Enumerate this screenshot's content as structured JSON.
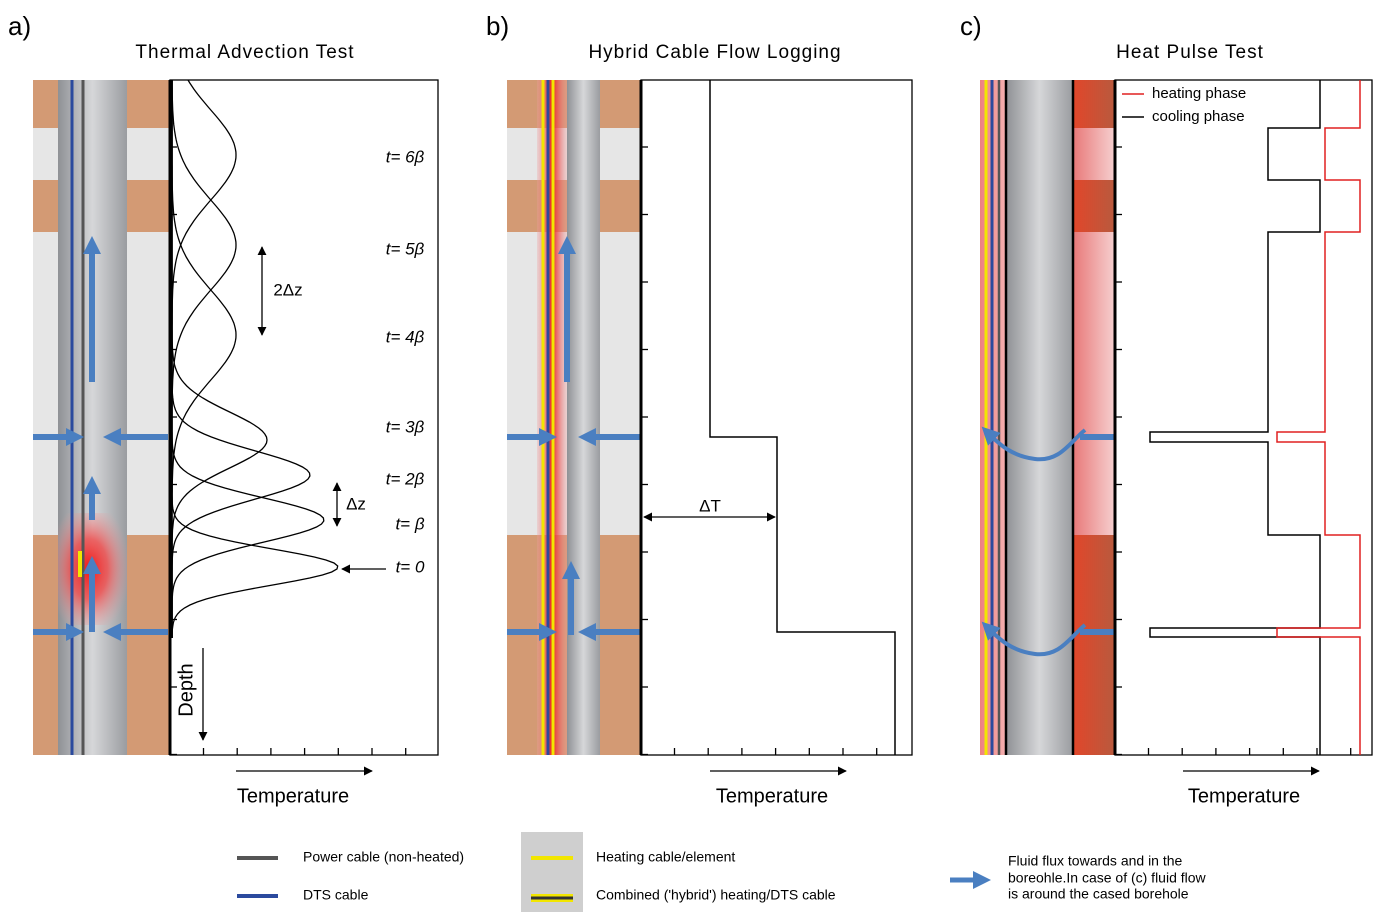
{
  "panels": [
    {
      "label": "a)",
      "title": "Thermal Advection Test",
      "x_axis_label": "Temperature",
      "time_labels": [
        "t= 6β",
        "t= 5β",
        "t= 4β",
        "t= 3β",
        "t= 2β",
        "t= β",
        "t= 0"
      ],
      "annotations": [
        "2Δz",
        "Δz"
      ],
      "depth_label": "Depth"
    },
    {
      "label": "b)",
      "title": "Hybrid Cable Flow Logging",
      "x_axis_label": "Temperature",
      "annotations": [
        "ΔT"
      ]
    },
    {
      "label": "c)",
      "title": "Heat Pulse Test",
      "x_axis_label": "Temperature",
      "legend": [
        "heating phase",
        "cooling phase"
      ]
    }
  ],
  "legend": {
    "power_cable": "Power cable (non-heated)",
    "dts_cable": "DTS cable",
    "heating_cable": "Heating cable/element",
    "hybrid_cable": "Combined ('hybrid') heating/DTS cable",
    "fluid_flux": [
      "Fluid flux towards and in the",
      "boreohle.In case of (c) fluid flow",
      "is around the cased borehole"
    ]
  }
}
